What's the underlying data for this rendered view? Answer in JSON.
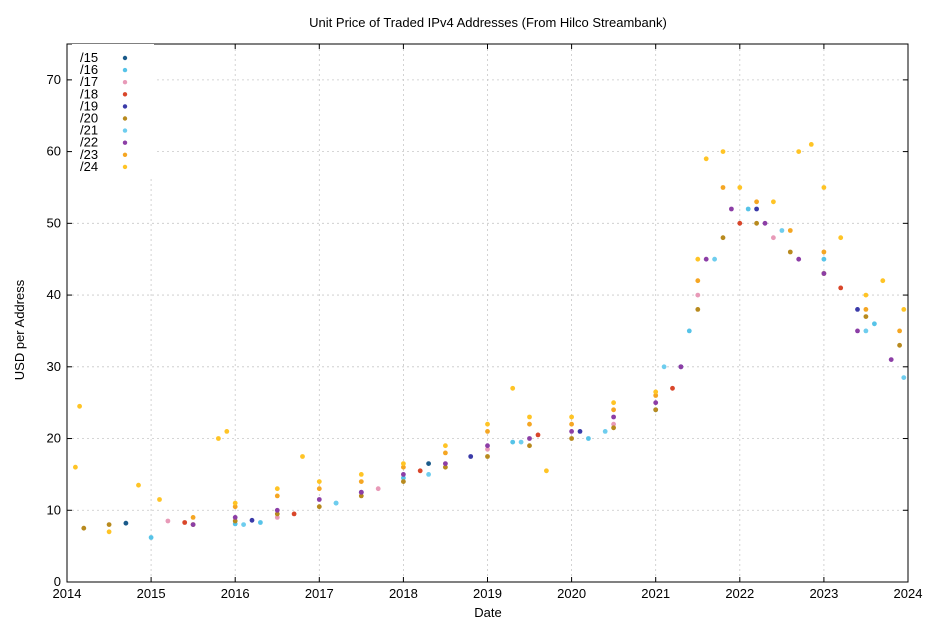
{
  "chart_data": {
    "type": "scatter",
    "title": "Unit Price of Traded IPv4 Addresses (From Hilco Streambank)",
    "xlabel": "Date",
    "ylabel": "USD per Address",
    "xlim": [
      2014,
      2024
    ],
    "ylim": [
      0,
      75
    ],
    "x_ticks": [
      "2014",
      "2015",
      "2016",
      "2017",
      "2018",
      "2019",
      "2020",
      "2021",
      "2022",
      "2023",
      "2024"
    ],
    "y_ticks": [
      "0",
      "10",
      "20",
      "30",
      "40",
      "50",
      "60",
      "70"
    ],
    "grid": true,
    "legend_position": "top-left",
    "series": [
      {
        "name": "/15",
        "color": "#1a5a8a",
        "points": [
          [
            2014.7,
            8.2
          ],
          [
            2018.3,
            16.5
          ]
        ]
      },
      {
        "name": "/16",
        "color": "#56c3e8",
        "points": [
          [
            2015.0,
            6.2
          ],
          [
            2016.0,
            8.1
          ],
          [
            2016.3,
            8.3
          ],
          [
            2017.2,
            11.0
          ],
          [
            2018.0,
            14.5
          ],
          [
            2019.3,
            19.5
          ],
          [
            2020.2,
            20.0
          ],
          [
            2021.0,
            24.0
          ],
          [
            2021.4,
            35.0
          ],
          [
            2022.1,
            52.0
          ],
          [
            2023.0,
            45.0
          ],
          [
            2023.6,
            36.0
          ]
        ]
      },
      {
        "name": "/17",
        "color": "#e89ab8",
        "points": [
          [
            2015.2,
            8.5
          ],
          [
            2016.5,
            9.0
          ],
          [
            2017.7,
            13.0
          ],
          [
            2019.0,
            18.5
          ],
          [
            2020.5,
            22.0
          ],
          [
            2021.5,
            40.0
          ],
          [
            2022.4,
            48.0
          ]
        ]
      },
      {
        "name": "/18",
        "color": "#d9462a",
        "points": [
          [
            2015.4,
            8.3
          ],
          [
            2016.7,
            9.5
          ],
          [
            2018.2,
            15.5
          ],
          [
            2019.6,
            20.5
          ],
          [
            2021.2,
            27.0
          ],
          [
            2022.0,
            50.0
          ],
          [
            2023.2,
            41.0
          ]
        ]
      },
      {
        "name": "/19",
        "color": "#3a3aa8",
        "points": [
          [
            2016.2,
            8.6
          ],
          [
            2017.5,
            12.5
          ],
          [
            2018.8,
            17.5
          ],
          [
            2020.1,
            21.0
          ],
          [
            2021.3,
            30.0
          ],
          [
            2022.2,
            52.0
          ],
          [
            2023.4,
            38.0
          ]
        ]
      },
      {
        "name": "/20",
        "color": "#b88a1e",
        "points": [
          [
            2014.2,
            7.5
          ],
          [
            2014.5,
            8.0
          ],
          [
            2015.5,
            8.0
          ],
          [
            2016.0,
            8.5
          ],
          [
            2016.5,
            9.5
          ],
          [
            2017.0,
            10.5
          ],
          [
            2017.5,
            12.0
          ],
          [
            2018.0,
            14.0
          ],
          [
            2018.5,
            16.0
          ],
          [
            2019.0,
            17.5
          ],
          [
            2019.5,
            19.0
          ],
          [
            2020.0,
            20.0
          ],
          [
            2020.5,
            21.5
          ],
          [
            2021.0,
            24.0
          ],
          [
            2021.5,
            38.0
          ],
          [
            2021.8,
            48.0
          ],
          [
            2022.2,
            50.0
          ],
          [
            2022.6,
            46.0
          ],
          [
            2023.0,
            43.0
          ],
          [
            2023.5,
            37.0
          ],
          [
            2023.9,
            33.0
          ]
        ]
      },
      {
        "name": "/21",
        "color": "#6ecdee",
        "points": [
          [
            2016.1,
            8.0
          ],
          [
            2017.2,
            11.0
          ],
          [
            2018.3,
            15.0
          ],
          [
            2019.4,
            19.5
          ],
          [
            2020.4,
            21.0
          ],
          [
            2021.1,
            30.0
          ],
          [
            2021.7,
            45.0
          ],
          [
            2022.5,
            49.0
          ],
          [
            2023.5,
            35.0
          ],
          [
            2023.95,
            28.5
          ]
        ]
      },
      {
        "name": "/22",
        "color": "#8c3ea6",
        "points": [
          [
            2015.5,
            8.0
          ],
          [
            2016.0,
            9.0
          ],
          [
            2016.5,
            10.0
          ],
          [
            2017.0,
            11.5
          ],
          [
            2017.5,
            12.5
          ],
          [
            2018.0,
            15.0
          ],
          [
            2018.5,
            16.5
          ],
          [
            2019.0,
            19.0
          ],
          [
            2019.5,
            20.0
          ],
          [
            2020.0,
            21.0
          ],
          [
            2020.5,
            23.0
          ],
          [
            2021.0,
            25.0
          ],
          [
            2021.3,
            30.0
          ],
          [
            2021.6,
            45.0
          ],
          [
            2021.9,
            52.0
          ],
          [
            2022.3,
            50.0
          ],
          [
            2022.7,
            45.0
          ],
          [
            2023.0,
            43.0
          ],
          [
            2023.4,
            35.0
          ],
          [
            2023.8,
            31.0
          ]
        ]
      },
      {
        "name": "/23",
        "color": "#f5a623",
        "points": [
          [
            2015.5,
            9.0
          ],
          [
            2016.0,
            10.5
          ],
          [
            2016.5,
            12.0
          ],
          [
            2017.0,
            13.0
          ],
          [
            2017.5,
            14.0
          ],
          [
            2018.0,
            16.0
          ],
          [
            2018.5,
            18.0
          ],
          [
            2019.0,
            21.0
          ],
          [
            2019.5,
            22.0
          ],
          [
            2020.0,
            22.0
          ],
          [
            2020.5,
            24.0
          ],
          [
            2021.0,
            26.0
          ],
          [
            2021.5,
            42.0
          ],
          [
            2021.8,
            55.0
          ],
          [
            2022.2,
            53.0
          ],
          [
            2022.6,
            49.0
          ],
          [
            2023.0,
            46.0
          ],
          [
            2023.5,
            38.0
          ],
          [
            2023.9,
            35.0
          ]
        ]
      },
      {
        "name": "/24",
        "color": "#ffc425",
        "points": [
          [
            2014.1,
            16.0
          ],
          [
            2014.15,
            24.5
          ],
          [
            2014.5,
            7.0
          ],
          [
            2014.85,
            13.5
          ],
          [
            2015.1,
            11.5
          ],
          [
            2015.8,
            20.0
          ],
          [
            2015.9,
            21.0
          ],
          [
            2016.0,
            11.0
          ],
          [
            2016.5,
            13.0
          ],
          [
            2016.8,
            17.5
          ],
          [
            2017.0,
            14.0
          ],
          [
            2017.5,
            15.0
          ],
          [
            2018.0,
            16.5
          ],
          [
            2018.5,
            19.0
          ],
          [
            2019.0,
            22.0
          ],
          [
            2019.3,
            27.0
          ],
          [
            2019.5,
            23.0
          ],
          [
            2019.7,
            15.5
          ],
          [
            2020.0,
            23.0
          ],
          [
            2020.5,
            25.0
          ],
          [
            2021.0,
            26.5
          ],
          [
            2021.5,
            45.0
          ],
          [
            2021.6,
            59.0
          ],
          [
            2021.8,
            60.0
          ],
          [
            2022.0,
            55.0
          ],
          [
            2022.4,
            53.0
          ],
          [
            2022.7,
            60.0
          ],
          [
            2022.85,
            61.0
          ],
          [
            2023.0,
            55.0
          ],
          [
            2023.2,
            48.0
          ],
          [
            2023.5,
            40.0
          ],
          [
            2023.7,
            42.0
          ],
          [
            2023.95,
            38.0
          ]
        ]
      }
    ]
  }
}
